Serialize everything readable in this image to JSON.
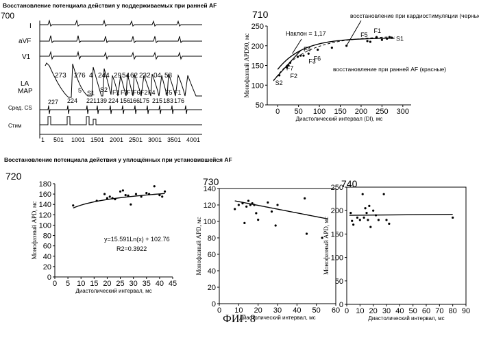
{
  "figure": {
    "caption": "ФИГ. 8",
    "title_top": "Восстановление потенциала действия у поддерживаемых при ранней AF",
    "title_bottom": "Восстановление потенциала действия у уплощённых при установившейся AF"
  },
  "panel700": {
    "ref": "700",
    "leads": [
      "I",
      "aVF",
      "V1",
      "LA",
      "MAP",
      "Сред. CS",
      "Стим"
    ],
    "map_top_numbers": [
      "273",
      "276",
      "4",
      "244",
      "29",
      "54",
      "62",
      "232",
      "04",
      "58"
    ],
    "map_mid_labels": [
      "5",
      "S2",
      "S1",
      "F1",
      "F3",
      "F7",
      "F6",
      "F2",
      "F4",
      "F5",
      "F1"
    ],
    "map_bottom_numbers": [
      "227",
      "224",
      "221",
      "139",
      "224",
      "156",
      "166",
      "175",
      "215",
      "183",
      "176"
    ],
    "time_ticks": [
      "501",
      "1001",
      "1501",
      "2001",
      "2501",
      "3001",
      "3501",
      "4001"
    ],
    "time_tick_first": "1"
  },
  "chart_data": [
    {
      "id": "710",
      "type": "scatter",
      "xlabel": "Диастолический интервал (DI), мс",
      "ylabel": "Монофазный APD90, мс",
      "xlim": [
        -25,
        320
      ],
      "ylim": [
        50,
        250
      ],
      "xticks": [
        0,
        50,
        100,
        150,
        200,
        250,
        300
      ],
      "yticks": [
        50,
        100,
        150,
        200,
        250
      ],
      "series": [
        {
          "values": [
            [
              4,
              125
            ],
            [
              22,
              145
            ],
            [
              26,
              150
            ],
            [
              30,
              157
            ],
            [
              48,
              172
            ],
            [
              55,
              175
            ],
            [
              62,
              175
            ],
            [
              74,
              180
            ],
            [
              96,
              190
            ],
            [
              130,
              195
            ],
            [
              165,
              200
            ],
            [
              215,
              212
            ],
            [
              222,
              210
            ],
            [
              237,
              222
            ],
            [
              250,
              215
            ],
            [
              262,
              218
            ],
            [
              268,
              222
            ],
            [
              274,
              220
            ]
          ]
        }
      ],
      "point_labels": [
        "S2",
        "F7",
        "F2",
        "F4",
        "F3",
        "F6",
        "F5",
        "F1",
        "S1"
      ],
      "annotations": [
        "Наклон = 1,17",
        "восстановление при кардиостимуляции (черные)",
        "восстановление при ранней AF (красные)"
      ]
    },
    {
      "id": "720",
      "type": "scatter",
      "xlabel": "Диастолический интервал, мс",
      "ylabel": "Монофазный APD, мс",
      "xlim": [
        0,
        45
      ],
      "ylim": [
        0,
        180
      ],
      "xticks": [
        0,
        5,
        10,
        15,
        20,
        25,
        30,
        35,
        40,
        45
      ],
      "yticks": [
        0,
        20,
        40,
        60,
        80,
        100,
        120,
        140,
        160,
        180
      ],
      "equation": "y=15.591Ln(x) + 102.76",
      "r2": "R2=0.3922",
      "series": [
        {
          "values": [
            [
              7,
              138
            ],
            [
              16,
              147
            ],
            [
              19,
              160
            ],
            [
              20,
              152
            ],
            [
              21,
              155
            ],
            [
              22,
              152
            ],
            [
              23,
              150
            ],
            [
              25,
              165
            ],
            [
              26,
              167
            ],
            [
              27,
              158
            ],
            [
              28,
              157
            ],
            [
              29,
              140
            ],
            [
              31,
              160
            ],
            [
              33,
              155
            ],
            [
              35,
              162
            ],
            [
              36,
              160
            ],
            [
              38,
              175
            ],
            [
              40,
              158
            ],
            [
              41,
              155
            ],
            [
              42,
              165
            ]
          ]
        }
      ]
    },
    {
      "id": "730",
      "type": "scatter",
      "xlabel": "Диастолический интервал, мс",
      "ylabel": "Монофазный APD, мс",
      "xlim": [
        0,
        60
      ],
      "ylim": [
        0,
        140
      ],
      "xticks": [
        0,
        10,
        20,
        30,
        40,
        50,
        60
      ],
      "yticks": [
        0,
        20,
        40,
        60,
        80,
        100,
        120,
        140
      ],
      "series": [
        {
          "values": [
            [
              8,
              115
            ],
            [
              10,
              120
            ],
            [
              12,
              122
            ],
            [
              13,
              98
            ],
            [
              14,
              118
            ],
            [
              15,
              125
            ],
            [
              16,
              120
            ],
            [
              17,
              122
            ],
            [
              18,
              120
            ],
            [
              19,
              110
            ],
            [
              20,
              102
            ],
            [
              25,
              123
            ],
            [
              27,
              112
            ],
            [
              29,
              95
            ],
            [
              30,
              120
            ],
            [
              44,
              128
            ],
            [
              45,
              85
            ],
            [
              53,
              80
            ]
          ]
        }
      ]
    },
    {
      "id": "740",
      "type": "scatter",
      "xlabel": "Диастолический интервал, мс",
      "ylabel": "Монофазный APD, мс",
      "xlim": [
        0,
        90
      ],
      "ylim": [
        0,
        250
      ],
      "xticks": [
        0,
        10,
        20,
        30,
        40,
        50,
        60,
        70,
        80,
        90
      ],
      "yticks": [
        0,
        50,
        100,
        150,
        200,
        250
      ],
      "series": [
        {
          "values": [
            [
              3,
              195
            ],
            [
              4,
              178
            ],
            [
              5,
              170
            ],
            [
              8,
              185
            ],
            [
              10,
              180
            ],
            [
              12,
              235
            ],
            [
              13,
              185
            ],
            [
              14,
              205
            ],
            [
              15,
              195
            ],
            [
              16,
              180
            ],
            [
              17,
              210
            ],
            [
              18,
              165
            ],
            [
              20,
              200
            ],
            [
              22,
              190
            ],
            [
              24,
              180
            ],
            [
              28,
              235
            ],
            [
              30,
              180
            ],
            [
              32,
              172
            ],
            [
              80,
              185
            ]
          ]
        }
      ]
    }
  ]
}
